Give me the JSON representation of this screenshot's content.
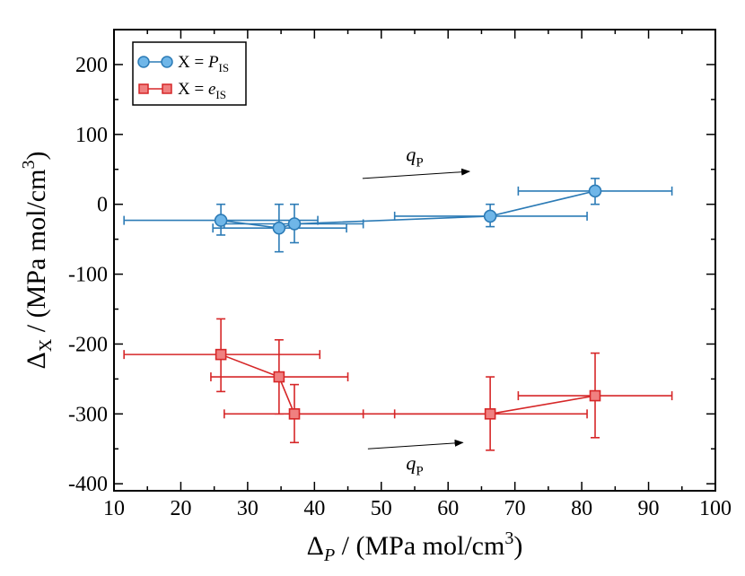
{
  "chart_data": {
    "type": "scatter",
    "title": "",
    "xlabel": {
      "symbol": "Δ",
      "sub": "P",
      "rest": " / (MPa mol/cm",
      "sup": "3",
      "close": ")"
    },
    "ylabel": {
      "symbol": "Δ",
      "sub": "X",
      "rest": " / (MPa mol/cm",
      "sup": "3",
      "close": ")"
    },
    "xlim": [
      10,
      100
    ],
    "ylim": [
      -410,
      250
    ],
    "xticks": [
      10,
      20,
      30,
      40,
      50,
      60,
      70,
      80,
      90,
      100
    ],
    "yticks": [
      -400,
      -300,
      -200,
      -100,
      0,
      100,
      200
    ],
    "xtick_labels": [
      "10",
      "20",
      "30",
      "40",
      "50",
      "60",
      "70",
      "80",
      "90",
      "100"
    ],
    "ytick_labels": [
      "-400",
      "-300",
      "-200",
      "-100",
      "0",
      "100",
      "200"
    ],
    "grid": false,
    "legend_position": "top-left",
    "series": [
      {
        "name": "X = P_IS",
        "legend_prefix": "X = ",
        "legend_var": "P",
        "legend_sub": "IS",
        "marker": "circle",
        "color": "#2c7bb6",
        "fill": "#6fb6e8",
        "points": [
          {
            "x": 26.0,
            "y": -23,
            "xerr_low": 11.5,
            "xerr_high": 40.5,
            "yerr_low": -44,
            "yerr_high": 0
          },
          {
            "x": 34.7,
            "y": -34,
            "xerr_low": 24.8,
            "xerr_high": 44.8,
            "yerr_low": -68,
            "yerr_high": 0
          },
          {
            "x": 37.0,
            "y": -28,
            "xerr_low": 26.5,
            "xerr_high": 47.3,
            "yerr_low": -55,
            "yerr_high": 0
          },
          {
            "x": 66.3,
            "y": -17,
            "xerr_low": 52.0,
            "xerr_high": 80.8,
            "yerr_low": -32,
            "yerr_high": 0
          },
          {
            "x": 82.0,
            "y": 19,
            "xerr_low": 70.5,
            "xerr_high": 93.5,
            "yerr_low": 0,
            "yerr_high": 37
          }
        ]
      },
      {
        "name": "X = e_IS",
        "legend_prefix": "X = ",
        "legend_var": "e",
        "legend_sub": "IS",
        "marker": "square",
        "color": "#d62728",
        "fill": "#f08080",
        "points": [
          {
            "x": 26.0,
            "y": -215,
            "xerr_low": 11.5,
            "xerr_high": 40.8,
            "yerr_low": -268,
            "yerr_high": -164
          },
          {
            "x": 34.7,
            "y": -247,
            "xerr_low": 24.5,
            "xerr_high": 45.0,
            "yerr_low": -300,
            "yerr_high": -194
          },
          {
            "x": 37.0,
            "y": -300,
            "xerr_low": 26.5,
            "xerr_high": 47.3,
            "yerr_low": -341,
            "yerr_high": -258
          },
          {
            "x": 66.3,
            "y": -300,
            "xerr_low": 52.0,
            "xerr_high": 80.8,
            "yerr_low": -352,
            "yerr_high": -247
          },
          {
            "x": 82.0,
            "y": -274,
            "xerr_low": 70.5,
            "xerr_high": 93.5,
            "yerr_low": -334,
            "yerr_high": -213
          }
        ]
      }
    ],
    "annotations": [
      {
        "label": "q",
        "sub": "P",
        "arrow_from": [
          47.2,
          37
        ],
        "arrow_to": [
          63.2,
          47
        ],
        "text_at": [
          55.0,
          62
        ],
        "name": "annotation-qp-top"
      },
      {
        "label": "q",
        "sub": "P",
        "arrow_from": [
          48.0,
          -350
        ],
        "arrow_to": [
          62.2,
          -341
        ],
        "text_at": [
          55.0,
          -380
        ],
        "name": "annotation-qp-bottom"
      }
    ]
  }
}
